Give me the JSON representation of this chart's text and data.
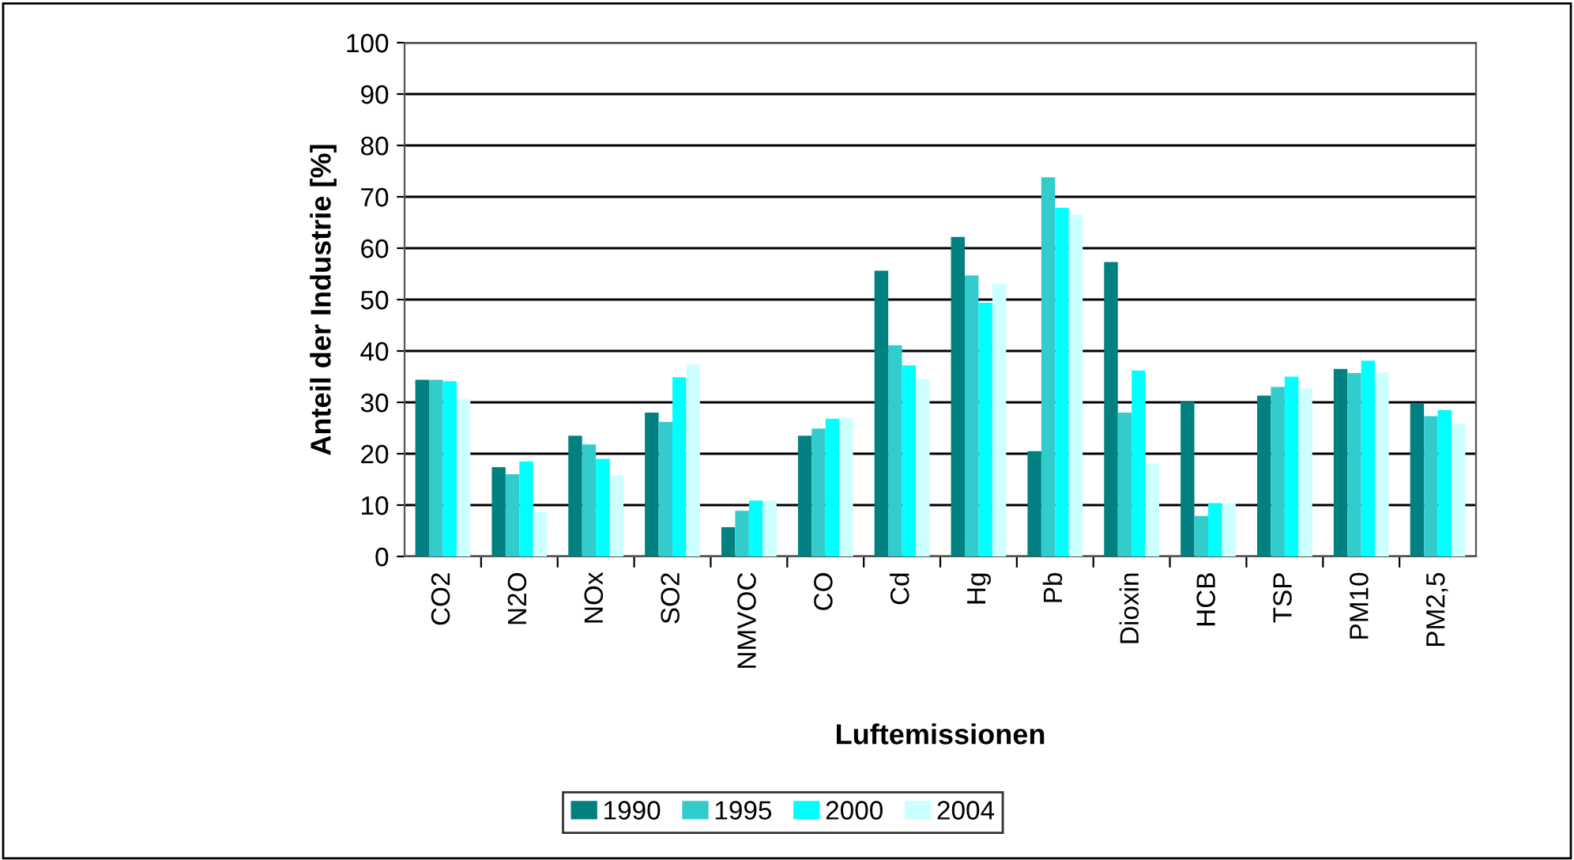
{
  "chart_data": {
    "type": "bar",
    "xlabel": "Luftemissionen",
    "ylabel": "Anteil der Industrie [%]",
    "categories": [
      "CO2",
      "N2O",
      "NOx",
      "SO2",
      "NMVOC",
      "CO",
      "Cd",
      "Hg",
      "Pb",
      "Dioxin",
      "HCB",
      "TSP",
      "PM10",
      "PM2,5"
    ],
    "series": [
      {
        "name": "1990",
        "color": "#008080",
        "values": [
          34.4,
          17.4,
          23.5,
          28.0,
          5.7,
          23.5,
          55.6,
          62.2,
          20.5,
          57.3,
          30.1,
          31.3,
          36.5,
          29.9
        ]
      },
      {
        "name": "1995",
        "color": "#33cccc",
        "values": [
          34.4,
          16.0,
          21.8,
          26.2,
          8.9,
          24.9,
          41.1,
          54.7,
          73.8,
          28.0,
          7.9,
          33.0,
          35.7,
          27.3
        ]
      },
      {
        "name": "2000",
        "color": "#00ffff",
        "values": [
          34.1,
          18.5,
          19.0,
          34.9,
          10.9,
          26.8,
          37.2,
          49.4,
          67.9,
          36.2,
          10.4,
          35.0,
          38.1,
          28.5
        ]
      },
      {
        "name": "2004",
        "color": "#ccffff",
        "values": [
          30.7,
          8.6,
          15.8,
          37.4,
          10.9,
          27.0,
          34.5,
          53.1,
          66.5,
          18.1,
          10.4,
          32.7,
          35.8,
          25.9
        ]
      }
    ],
    "ylim": [
      0,
      100
    ],
    "yticks": [
      0,
      10,
      20,
      30,
      40,
      50,
      60,
      70,
      80,
      90,
      100
    ],
    "grid": "y",
    "legend": "bottom"
  }
}
